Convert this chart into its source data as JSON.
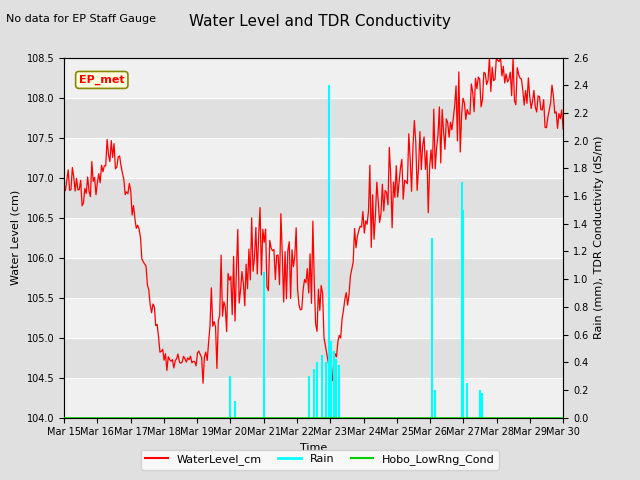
{
  "title": "Water Level and TDR Conductivity",
  "top_left_text": "No data for EP Staff Gauge",
  "annotation_box": "EP_met",
  "xlabel": "Time",
  "ylabel_left": "Water Level (cm)",
  "ylabel_right": "Rain (mm), TDR Conductivity (dS/m)",
  "ylim_left": [
    104.0,
    108.5
  ],
  "ylim_right": [
    0.0,
    2.6
  ],
  "yticks_left": [
    104.0,
    104.5,
    105.0,
    105.5,
    106.0,
    106.5,
    107.0,
    107.5,
    108.0,
    108.5
  ],
  "yticks_right": [
    0.0,
    0.2,
    0.4,
    0.6,
    0.8,
    1.0,
    1.2,
    1.4,
    1.6,
    1.8,
    2.0,
    2.2,
    2.4,
    2.6
  ],
  "x_tick_labels": [
    "Mar 15",
    "Mar 16",
    "Mar 17",
    "Mar 18",
    "Mar 19",
    "Mar 20",
    "Mar 21",
    "Mar 22",
    "Mar 23",
    "Mar 24",
    "Mar 25",
    "Mar 26",
    "Mar 27",
    "Mar 28",
    "Mar 29",
    "Mar 30"
  ],
  "water_level_color": "#ff0000",
  "rain_color": "#00ffff",
  "cond_color": "#00cc00",
  "bg_color": "#e0e0e0",
  "plot_bg_color_light": "#f0f0f0",
  "plot_bg_color_dark": "#e0e0e0",
  "grid_color": "#ffffff",
  "legend_labels": [
    "WaterLevel_cm",
    "Rain",
    "Hobo_LowRng_Cond"
  ],
  "title_fontsize": 11,
  "label_fontsize": 8,
  "tick_fontsize": 7,
  "annotation_fontsize": 8
}
